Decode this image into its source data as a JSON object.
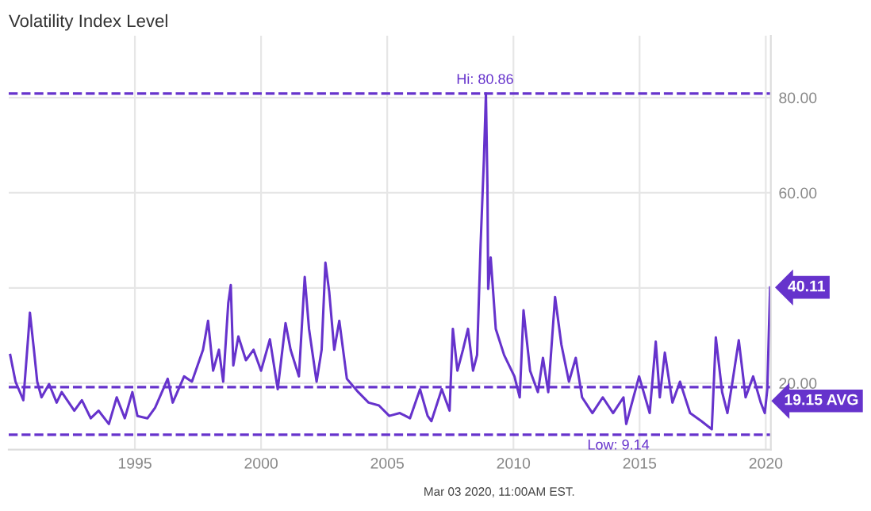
{
  "chart_data": {
    "type": "line",
    "title": "Volatility Index Level",
    "x": [
      1990.06,
      1990.27,
      1990.58,
      1990.78,
      1990.84,
      1991.0,
      1991.13,
      1991.3,
      1991.6,
      1991.9,
      1992.1,
      1992.6,
      1992.9,
      1993.25,
      1993.56,
      1993.97,
      1994.28,
      1994.6,
      1994.9,
      1995.1,
      1995.5,
      1995.8,
      1996.3,
      1996.5,
      1996.95,
      1997.26,
      1997.7,
      1997.9,
      1998.1,
      1998.33,
      1998.5,
      1998.7,
      1998.8,
      1998.9,
      1999.1,
      1999.4,
      1999.7,
      2000.0,
      2000.35,
      2000.66,
      2000.97,
      2001.17,
      2001.5,
      2001.73,
      2001.9,
      2002.2,
      2002.4,
      2002.55,
      2002.7,
      2002.9,
      2003.1,
      2003.4,
      2003.85,
      2004.26,
      2004.67,
      2005.08,
      2005.5,
      2005.9,
      2006.3,
      2006.6,
      2006.75,
      2007.16,
      2007.47,
      2007.6,
      2007.78,
      2008.0,
      2008.2,
      2008.4,
      2008.56,
      2008.7,
      2008.83,
      2008.91,
      2008.97,
      2009.0,
      2009.1,
      2009.3,
      2009.63,
      2010.04,
      2010.25,
      2010.4,
      2010.66,
      2010.97,
      2011.17,
      2011.38,
      2011.65,
      2011.9,
      2012.2,
      2012.47,
      2012.72,
      2013.13,
      2013.54,
      2013.95,
      2014.36,
      2014.47,
      2014.98,
      2015.4,
      2015.64,
      2015.8,
      2016.0,
      2016.3,
      2016.6,
      2017.0,
      2017.45,
      2017.86,
      2018.02,
      2018.27,
      2018.48,
      2018.68,
      2018.93,
      2019.2,
      2019.5,
      2019.8,
      2019.96,
      2020.06,
      2020.17
    ],
    "series": [
      {
        "color": "#6633cc",
        "values": [
          25.9,
          20.3,
          16.4,
          30.3,
          34.8,
          27,
          20.3,
          17,
          19.8,
          15.9,
          18.1,
          14.2,
          16.4,
          12.6,
          14.2,
          11.4,
          17,
          12.6,
          18.1,
          13.1,
          12.6,
          14.8,
          20.9,
          15.9,
          21.4,
          20.3,
          27,
          33.1,
          22.6,
          27,
          20.3,
          36.8,
          40.6,
          23.7,
          29.8,
          24.8,
          27,
          22.6,
          29.2,
          18.7,
          32.6,
          27,
          21.4,
          42.3,
          31.4,
          20.3,
          27,
          45.3,
          39.2,
          27,
          33.1,
          20.9,
          18.1,
          15.9,
          15.3,
          13.1,
          13.7,
          12.6,
          18.7,
          13.1,
          12,
          18.7,
          14.2,
          31.4,
          22.6,
          27,
          31.4,
          22.6,
          25.9,
          49.2,
          67,
          80.86,
          61.4,
          39.8,
          46.4,
          31.4,
          25.9,
          21.4,
          17,
          35.3,
          22.6,
          18.1,
          25.3,
          18.1,
          38.1,
          28.1,
          20.3,
          25.3,
          17,
          13.7,
          17,
          13.7,
          17,
          11.4,
          21.4,
          13.7,
          28.7,
          17,
          26.4,
          15.9,
          20.3,
          13.7,
          12,
          10.3,
          29.6,
          18.1,
          13.7,
          20.3,
          29,
          17,
          21.4,
          15.9,
          13.7,
          18.7,
          40.11
        ]
      }
    ],
    "xlim": [
      1990,
      2020.2
    ],
    "ylim": [
      6,
      93
    ],
    "xticks": [
      1995,
      2000,
      2005,
      2010,
      2015,
      2020
    ],
    "yticks": [
      {
        "value": 20,
        "label": "20.00"
      },
      {
        "value": 40,
        "label": null
      },
      {
        "value": 60,
        "label": "60.00"
      },
      {
        "value": 80,
        "label": "80.00"
      }
    ],
    "grid": true,
    "marker": "none",
    "line_style": "solid",
    "ref_lines": [
      {
        "axis": "y",
        "value": 80.86,
        "label": "Hi: 80.86",
        "color": "#6633cc",
        "line_style": "dashed"
      },
      {
        "axis": "y",
        "value": 19.15,
        "label": "19.15 AVG",
        "color": "#6633cc",
        "line_style": "dashed"
      },
      {
        "axis": "y",
        "value": 9.14,
        "label": "Low: 9.14",
        "color": "#6633cc",
        "line_style": "dashed"
      }
    ],
    "annotations": [
      {
        "text": "40.11",
        "x": 2020.17,
        "y": 40.11
      },
      "Mar 03 2020, 11:00AM EST."
    ]
  }
}
